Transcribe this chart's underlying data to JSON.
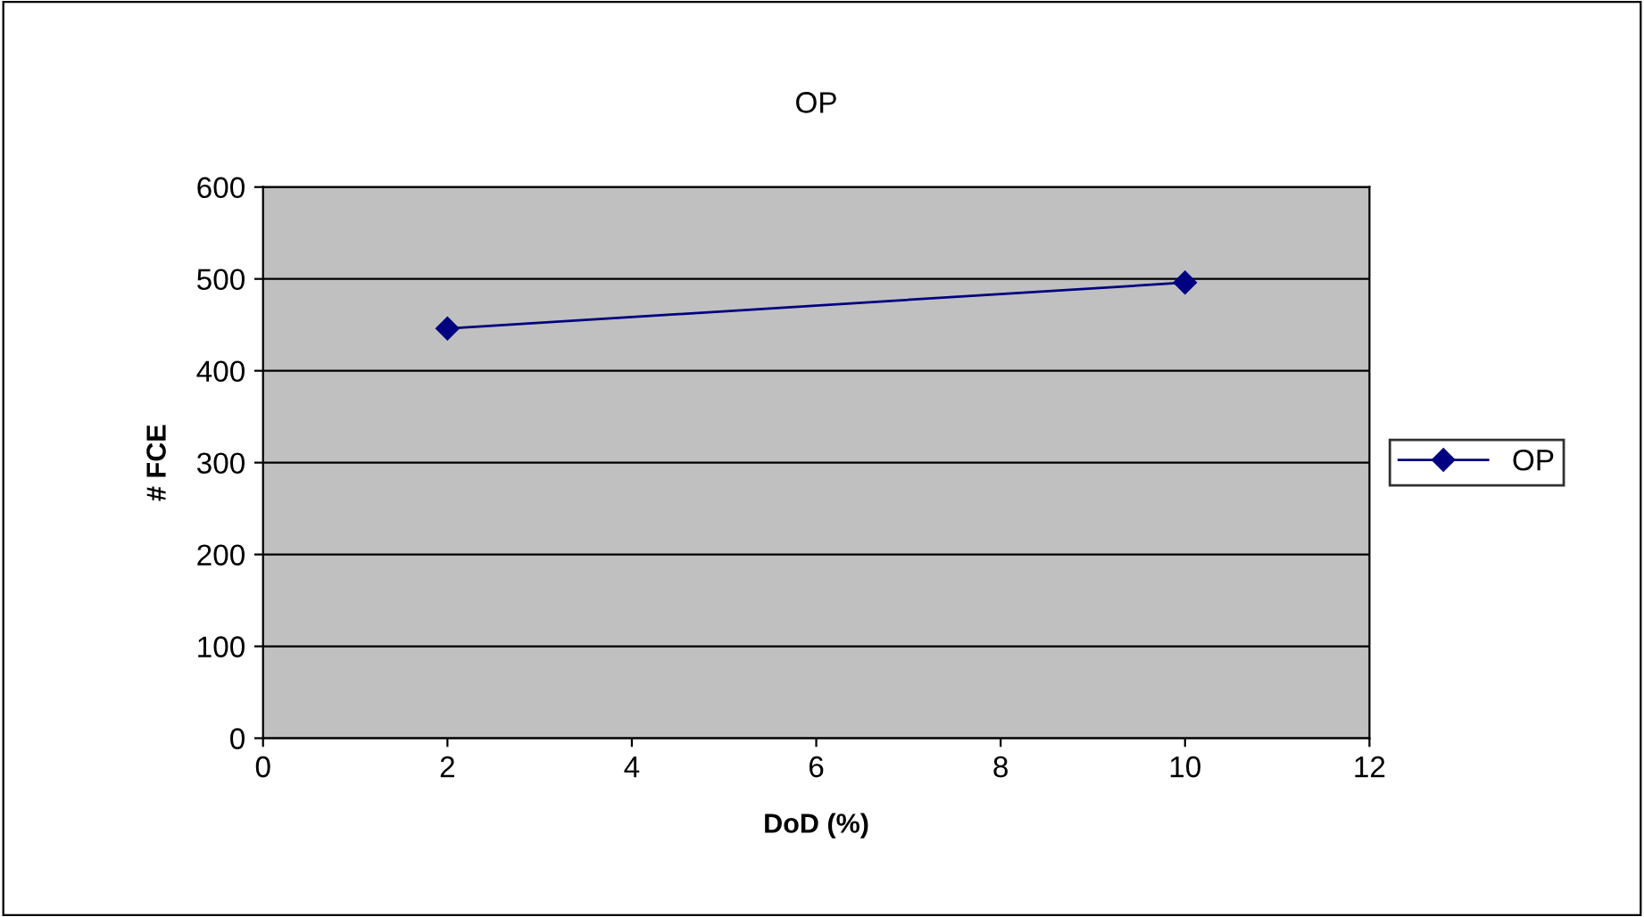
{
  "chart_data": {
    "type": "line",
    "title": "OP",
    "xlabel": "DoD (%)",
    "ylabel": "# FCE",
    "x": [
      2,
      10
    ],
    "series": [
      {
        "name": "OP",
        "color": "#000080",
        "values": [
          446,
          496
        ]
      }
    ],
    "xlim": [
      0,
      12
    ],
    "xticks": [
      0,
      2,
      4,
      6,
      8,
      10,
      12
    ],
    "ylim": [
      0,
      600
    ],
    "yticks": [
      0,
      100,
      200,
      300,
      400,
      500,
      600
    ],
    "grid": "y",
    "legend": "right",
    "marker": "diamond",
    "line_style": "solid"
  }
}
